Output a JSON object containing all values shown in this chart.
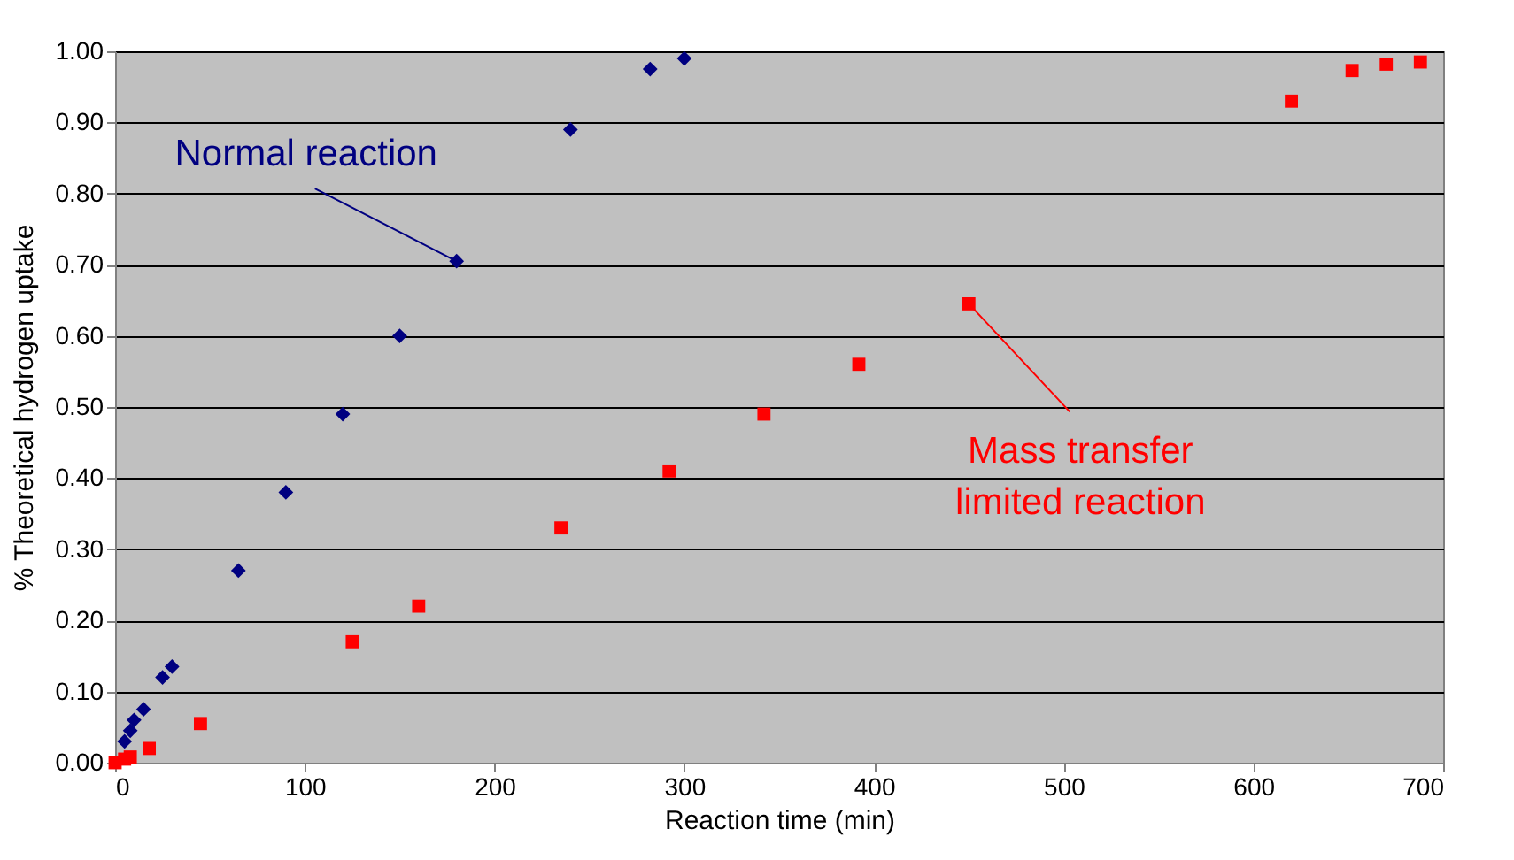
{
  "chart_data": {
    "type": "scatter",
    "xlabel": "Reaction time (min)",
    "ylabel": "% Theoretical hydrogen uptake",
    "series": [
      {
        "color": "#000080",
        "marker": "diamond",
        "x": [
          5,
          8,
          10,
          15,
          25,
          30,
          65,
          90,
          120,
          150,
          180,
          240,
          282,
          300
        ],
        "values": [
          0.03,
          0.045,
          0.06,
          0.075,
          0.12,
          0.135,
          0.27,
          0.38,
          0.49,
          0.6,
          0.705,
          0.89,
          0.975,
          0.99
        ]
      },
      {
        "color": "#ff0000",
        "marker": "square",
        "x": [
          0,
          5,
          8,
          18,
          45,
          125,
          160,
          235,
          292,
          342,
          392,
          450,
          620,
          652,
          670,
          688
        ],
        "values": [
          0,
          0.005,
          0.008,
          0.02,
          0.055,
          0.17,
          0.22,
          0.33,
          0.41,
          0.49,
          0.56,
          0.645,
          0.93,
          0.973,
          0.982,
          0.985
        ]
      }
    ],
    "annotations": [
      {
        "text": "Normal reaction",
        "x": 180,
        "y": 0.705
      },
      {
        "text": "Mass transfer\nlimited reaction",
        "x": 450,
        "y": 0.645
      }
    ],
    "xlim": [
      0,
      700
    ],
    "xticks": [
      0,
      100,
      200,
      300,
      400,
      500,
      600,
      700
    ],
    "ylim": [
      0,
      1
    ],
    "yticks": [
      {
        "value": 0,
        "label": "0.00"
      },
      {
        "value": 0.1,
        "label": "0.10"
      },
      {
        "value": 0.2,
        "label": "0.20"
      },
      {
        "value": 0.3,
        "label": "0.30"
      },
      {
        "value": 0.4,
        "label": "0.40"
      },
      {
        "value": 0.5,
        "label": "0.50"
      },
      {
        "value": 0.6,
        "label": "0.60"
      },
      {
        "value": 0.7,
        "label": "0.70"
      },
      {
        "value": 0.8,
        "label": "0.80"
      },
      {
        "value": 0.9,
        "label": "0.90"
      },
      {
        "value": 1,
        "label": "1.00"
      }
    ],
    "grid": "y"
  }
}
